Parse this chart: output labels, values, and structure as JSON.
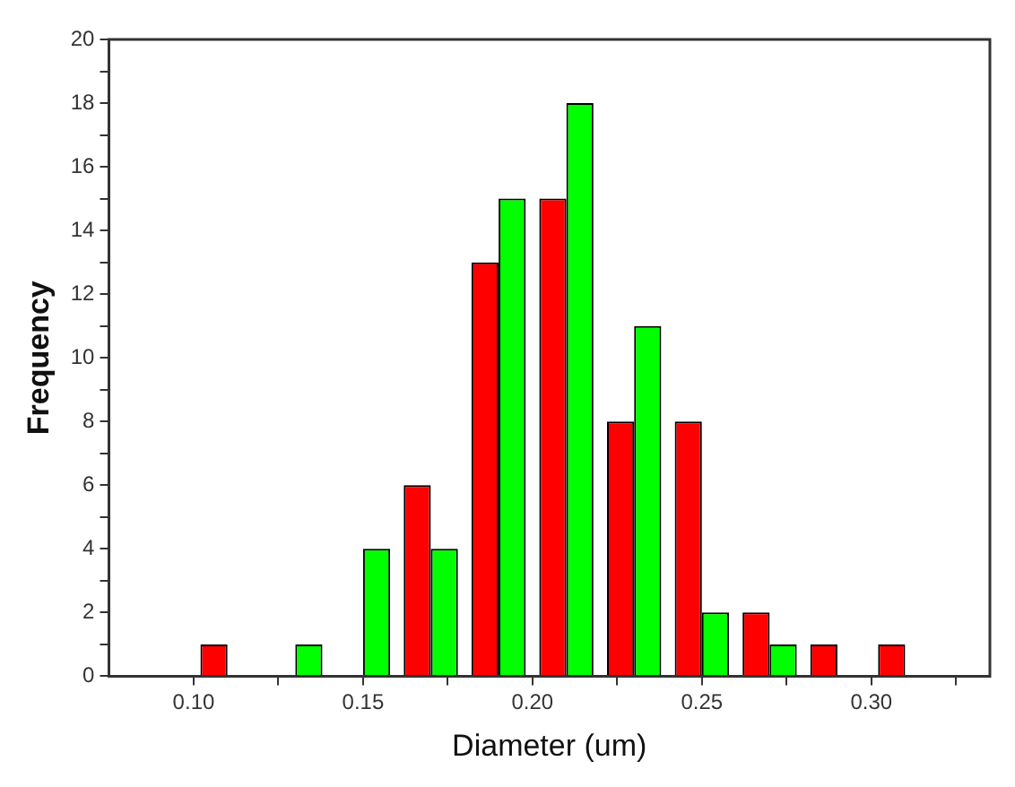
{
  "chart_data": {
    "type": "bar",
    "xlabel": "Diameter (um)",
    "ylabel": "Frequency",
    "x": [
      0.11,
      0.13,
      0.15,
      0.17,
      0.19,
      0.21,
      0.23,
      0.25,
      0.27,
      0.29,
      0.31
    ],
    "series": [
      {
        "color": "#ff0000",
        "values": [
          1,
          0,
          0,
          6,
          13,
          15,
          8,
          8,
          2,
          1,
          1
        ]
      },
      {
        "color": "#00ff00",
        "values": [
          0,
          1,
          4,
          4,
          15,
          18,
          11,
          2,
          1,
          0,
          0
        ]
      }
    ],
    "xlim": [
      0.075,
      0.335
    ],
    "xticks": [
      {
        "value": 0.1,
        "label": "0.10"
      },
      {
        "value": 0.125,
        "label": null
      },
      {
        "value": 0.15,
        "label": "0.15"
      },
      {
        "value": 0.175,
        "label": null
      },
      {
        "value": 0.2,
        "label": "0.20"
      },
      {
        "value": 0.225,
        "label": null
      },
      {
        "value": 0.25,
        "label": "0.25"
      },
      {
        "value": 0.275,
        "label": null
      },
      {
        "value": 0.3,
        "label": "0.30"
      },
      {
        "value": 0.325,
        "label": null
      }
    ],
    "ylim": [
      0,
      20
    ],
    "yticks": [
      0,
      {
        "value": 1,
        "label": null
      },
      2,
      {
        "value": 3,
        "label": null
      },
      4,
      {
        "value": 5,
        "label": null
      },
      6,
      {
        "value": 7,
        "label": null
      },
      8,
      {
        "value": 9,
        "label": null
      },
      10,
      {
        "value": 11,
        "label": null
      },
      12,
      {
        "value": 13,
        "label": null
      },
      14,
      {
        "value": 15,
        "label": null
      },
      16,
      {
        "value": 17,
        "label": null
      },
      18,
      {
        "value": 19,
        "label": null
      },
      20
    ],
    "grid": false,
    "legend": false
  }
}
